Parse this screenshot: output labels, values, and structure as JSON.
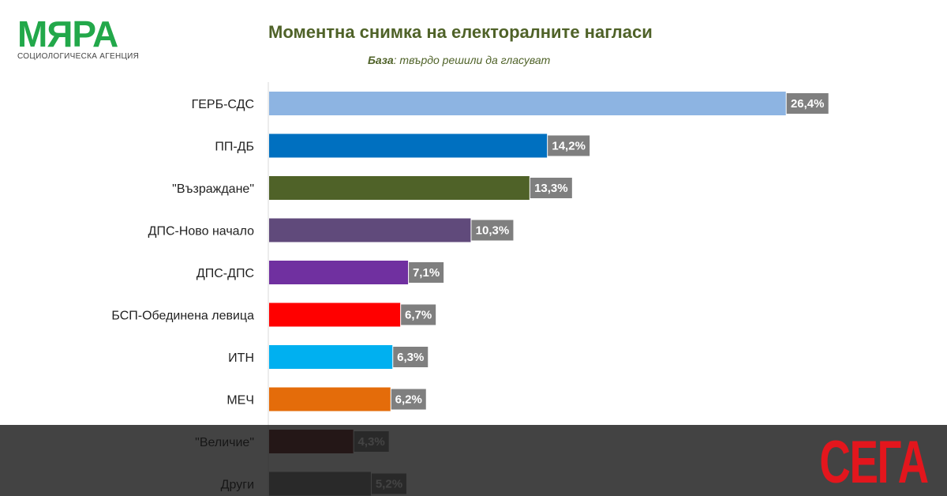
{
  "logo": {
    "word": "МЯРА",
    "subtitle": "СОЦИОЛОГИЧЕСКА АГЕНЦИЯ"
  },
  "brand": "СЕГА",
  "colors": {
    "title": "#4f6228",
    "logo": "#22a84a",
    "brand": "#e3161d",
    "value_label_bg": "#7f7f7f"
  },
  "chart_data": {
    "type": "bar",
    "orientation": "horizontal",
    "title": "Моментна снимка на електоралните нагласи",
    "subtitle_label": "База",
    "subtitle_text": ": твърдо решили да гласуват",
    "unit": "%",
    "xlim": [
      0,
      30
    ],
    "grid": false,
    "categories": [
      "ГЕРБ-СДС",
      "ПП-ДБ",
      "\"Възраждане\"",
      "ДПС-Ново начало",
      "ДПС-ДПС",
      "БСП-Обединена левица",
      "ИТН",
      "МЕЧ",
      "\"Величие\"",
      "Други"
    ],
    "values": [
      26.4,
      14.2,
      13.3,
      10.3,
      7.1,
      6.7,
      6.3,
      6.2,
      4.3,
      5.2
    ],
    "value_labels": [
      "26,4%",
      "14,2%",
      "13,3%",
      "10,3%",
      "7,1%",
      "6,7%",
      "6,3%",
      "6,2%",
      "4,3%",
      "5,2%"
    ],
    "bar_colors": [
      "#8db4e2",
      "#0070c0",
      "#4f6228",
      "#604a7b",
      "#7030a0",
      "#ff0000",
      "#00b0f0",
      "#e46c0a",
      "#632523",
      "#7f7f7f"
    ]
  }
}
